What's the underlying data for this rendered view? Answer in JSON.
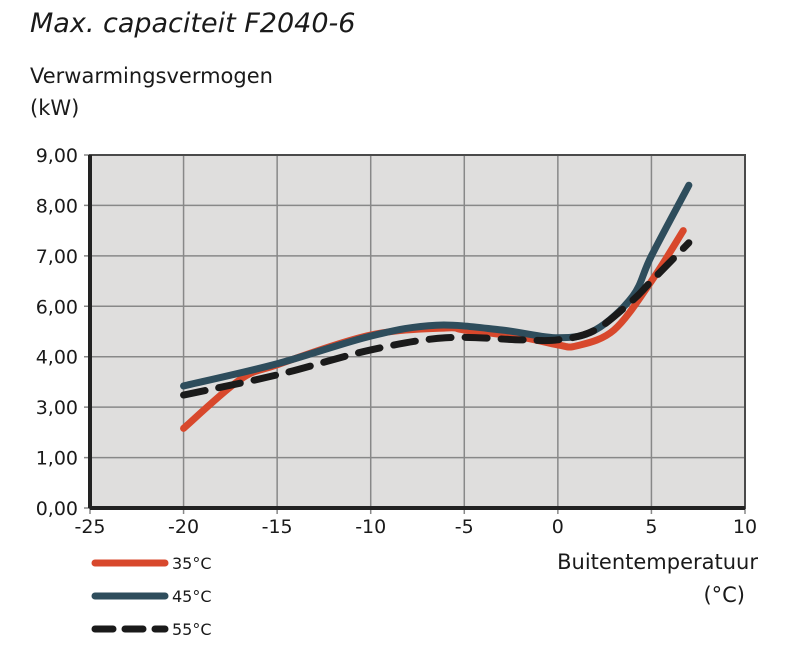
{
  "chart_data": {
    "type": "line",
    "title": "Max. capaciteit F2040-6",
    "ylabel": [
      "Verwarmingsvermogen",
      "(kW)"
    ],
    "xlabel": [
      "Buitentemperatuur",
      "(°C)"
    ],
    "xlim": [
      -25,
      10
    ],
    "x_ticks": [
      "-25",
      "-20",
      "-15",
      "-10",
      "-5",
      "0",
      "5",
      "10"
    ],
    "y_ticks": [
      "0,00",
      "1,00",
      "3,00",
      "4,00",
      "6,00",
      "7,00",
      "8,00",
      "9,00"
    ],
    "grid": true,
    "legend": "bottom-left",
    "series": [
      {
        "name": "35°C",
        "color": "#d8482c",
        "dash": false,
        "points": [
          [
            -20,
            2.16
          ],
          [
            -17,
            3.54
          ],
          [
            -15,
            3.84
          ],
          [
            -10,
            4.86
          ],
          [
            -6,
            5.14
          ],
          [
            -5,
            5.06
          ],
          [
            -2,
            4.78
          ],
          [
            0,
            4.47
          ],
          [
            1,
            4.43
          ],
          [
            3,
            5.06
          ],
          [
            5,
            6.5
          ],
          [
            6.7,
            7.5
          ]
        ]
      },
      {
        "name": "45°C",
        "color": "#2e4d5c",
        "dash": false,
        "points": [
          [
            -20,
            3.42
          ],
          [
            -15,
            3.86
          ],
          [
            -10,
            4.82
          ],
          [
            -6.5,
            5.25
          ],
          [
            -3,
            5.06
          ],
          [
            0,
            4.75
          ],
          [
            2,
            5.06
          ],
          [
            4,
            6.2
          ],
          [
            5,
            7.0
          ],
          [
            7,
            8.4
          ]
        ]
      },
      {
        "name": "55°C",
        "color": "#1a1a1a",
        "dash": true,
        "points": [
          [
            -20,
            3.24
          ],
          [
            -15,
            3.64
          ],
          [
            -10,
            4.27
          ],
          [
            -6,
            4.75
          ],
          [
            -2,
            4.67
          ],
          [
            0,
            4.67
          ],
          [
            2,
            5.06
          ],
          [
            4,
            6.12
          ],
          [
            5,
            6.5
          ],
          [
            7,
            7.26
          ]
        ]
      }
    ]
  }
}
